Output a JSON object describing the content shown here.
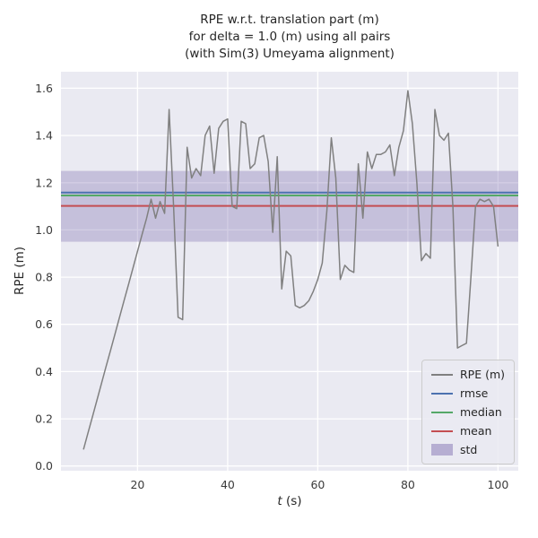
{
  "chart_data": {
    "type": "line",
    "title": "RPE w.r.t. translation part (m) for delta = 1.0 (m) using all pairs (with Sim(3) Umeyama alignment)",
    "title_lines": [
      "RPE w.r.t. translation part (m)",
      "for delta = 1.0 (m) using all pairs",
      "(with Sim(3) Umeyama alignment)"
    ],
    "xlabel": "t (s)",
    "xlabel_var": "t",
    "xlabel_rest": " (s)",
    "ylabel": "RPE (m)",
    "xlim": [
      3,
      104.5
    ],
    "ylim": [
      -0.02,
      1.67
    ],
    "xticks": [
      20,
      40,
      60,
      80,
      100
    ],
    "xtick_labels": [
      "20",
      "40",
      "60",
      "80",
      "100"
    ],
    "yticks": [
      0,
      0.2,
      0.4,
      0.6,
      0.8,
      1.0,
      1.2,
      1.4,
      1.6
    ],
    "ytick_labels": [
      "0.0",
      "0.2",
      "0.4",
      "0.6",
      "0.8",
      "1.0",
      "1.2",
      "1.4",
      "1.6"
    ],
    "grid": true,
    "legend_position": "lower right",
    "style": {
      "axes_bg": "#EAEAF2",
      "grid_color": "#FFFFFF",
      "text_color": "#262626",
      "series_color": "#808080",
      "rmse_color": "#4C72B0",
      "median_color": "#55A868",
      "mean_color": "#C44E52",
      "std_color": "#8172B2"
    },
    "series": [
      {
        "name": "RPE (m)",
        "color": "#808080",
        "x": [
          8,
          9,
          10,
          11,
          12,
          13,
          14,
          15,
          16,
          17,
          18,
          19,
          20,
          21,
          22,
          23,
          24,
          25,
          26,
          27,
          28,
          29,
          30,
          31,
          32,
          33,
          34,
          35,
          36,
          37,
          38,
          39,
          40,
          41,
          42,
          43,
          44,
          45,
          46,
          47,
          48,
          49,
          50,
          51,
          52,
          53,
          54,
          55,
          56,
          57,
          58,
          59,
          60,
          61,
          62,
          63,
          64,
          65,
          66,
          67,
          68,
          69,
          70,
          71,
          72,
          73,
          74,
          75,
          76,
          77,
          78,
          79,
          80,
          81,
          82,
          83,
          84,
          85,
          86,
          87,
          88,
          89,
          90,
          91,
          92,
          93,
          94,
          95,
          96,
          97,
          98,
          99,
          100
        ],
        "y": [
          0.07,
          0.14,
          0.21,
          0.28,
          0.35,
          0.42,
          0.49,
          0.56,
          0.63,
          0.7,
          0.77,
          0.84,
          0.91,
          0.98,
          1.05,
          1.13,
          1.05,
          1.12,
          1.07,
          1.51,
          1.1,
          0.63,
          0.62,
          1.35,
          1.22,
          1.26,
          1.23,
          1.4,
          1.44,
          1.24,
          1.43,
          1.46,
          1.47,
          1.1,
          1.09,
          1.46,
          1.45,
          1.26,
          1.28,
          1.39,
          1.4,
          1.29,
          0.99,
          1.31,
          0.75,
          0.91,
          0.89,
          0.68,
          0.67,
          0.68,
          0.7,
          0.74,
          0.79,
          0.86,
          1.08,
          1.39,
          1.22,
          0.79,
          0.85,
          0.83,
          0.82,
          1.28,
          1.05,
          1.33,
          1.26,
          1.32,
          1.32,
          1.33,
          1.36,
          1.23,
          1.35,
          1.42,
          1.59,
          1.45,
          1.2,
          0.87,
          0.9,
          0.88,
          1.51,
          1.4,
          1.38,
          1.41,
          1.1,
          0.5,
          0.51,
          0.52,
          0.8,
          1.1,
          1.13,
          1.12,
          1.13,
          1.1,
          0.93
        ]
      }
    ],
    "stat_lines": [
      {
        "name": "rmse",
        "color": "#4C72B0",
        "value": 1.158
      },
      {
        "name": "median",
        "color": "#55A868",
        "value": 1.146
      },
      {
        "name": "mean",
        "color": "#C44E52",
        "value": 1.102
      }
    ],
    "std_band": {
      "label": "std",
      "color": "#8172B2",
      "opacity": 0.35,
      "range": [
        0.95,
        1.25
      ]
    },
    "legend": {
      "position": "lower right",
      "entries": [
        {
          "label": "RPE (m)",
          "color": "#808080",
          "type": "line"
        },
        {
          "label": "rmse",
          "color": "#4C72B0",
          "type": "line"
        },
        {
          "label": "median",
          "color": "#55A868",
          "type": "line"
        },
        {
          "label": "mean",
          "color": "#C44E52",
          "type": "line"
        },
        {
          "label": "std",
          "color": "#8172B2",
          "type": "patch"
        }
      ]
    }
  }
}
